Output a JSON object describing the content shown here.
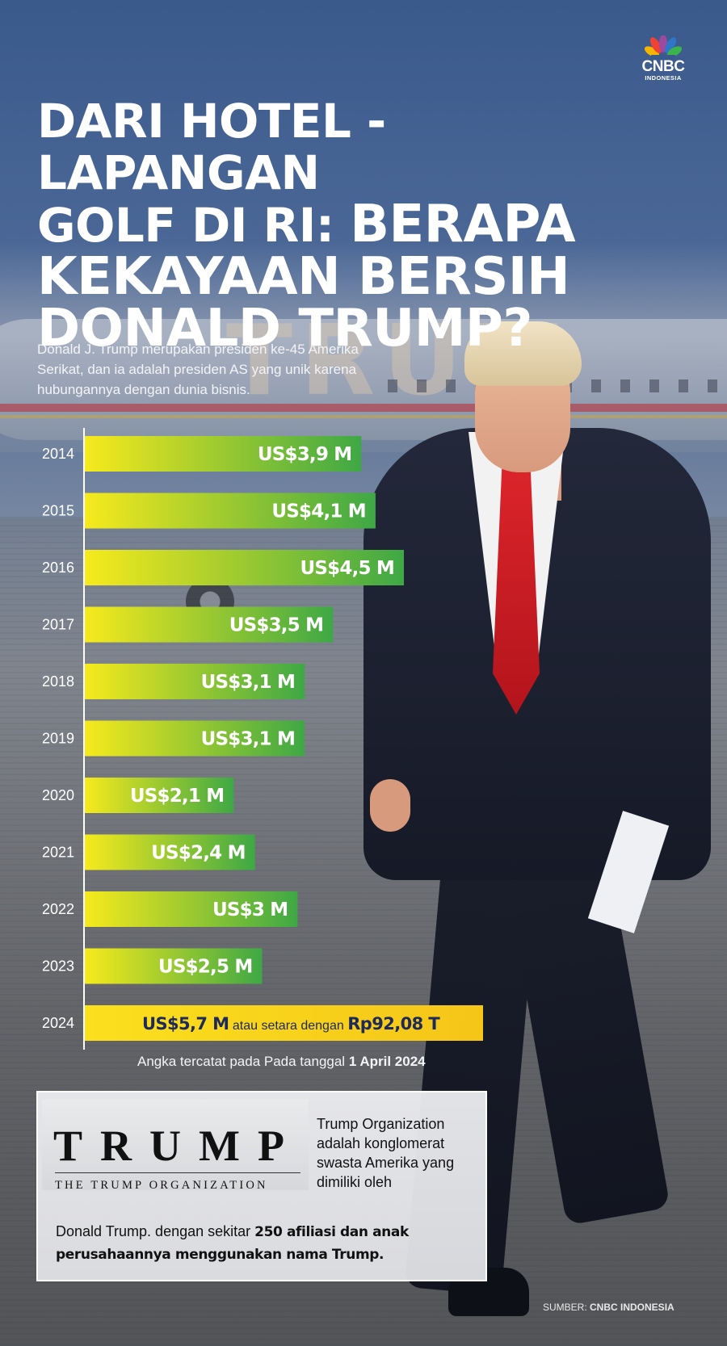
{
  "brand": {
    "name": "CNBC",
    "sub": "INDONESIA"
  },
  "title": {
    "line1": "DARI HOTEL - LAPANGAN",
    "line2a": "GOLF DI RI: ",
    "line2b": "BERAPA",
    "line3": "KEKAYAAN BERSIH",
    "line4": "DONALD TRUMP?"
  },
  "intro": "Donald J. Trump merupakan presiden ke-45 Amerika Serikat, dan ia adalah presiden AS yang unik karena hubungannya dengan dunia bisnis.",
  "chart_data": {
    "type": "bar",
    "orientation": "horizontal",
    "title": "Kekayaan bersih Donald Trump",
    "categories": [
      "2014",
      "2015",
      "2016",
      "2017",
      "2018",
      "2019",
      "2020",
      "2021",
      "2022",
      "2023",
      "2024"
    ],
    "values": [
      3.9,
      4.1,
      4.5,
      3.5,
      3.1,
      3.1,
      2.1,
      2.4,
      3.0,
      2.5,
      5.7
    ],
    "unit": "US$ miliar (M)",
    "labels": [
      "US$3,9 M",
      "US$4,1 M",
      "US$4,5 M",
      "US$3,5 M",
      "US$3,1 M",
      "US$3,1 M",
      "US$2,1 M",
      "US$2,4 M",
      "US$3 M",
      "US$2,5 M",
      "US$5,7 M"
    ],
    "highlight_index": 10,
    "highlight_extra": {
      "text": "atau setara dengan",
      "value": "Rp92,08 T"
    },
    "xlim": [
      0,
      5.7
    ],
    "colors": {
      "gradient_start": "#f7ea1c",
      "gradient_end": "#3ea845",
      "highlight": "#f5c518"
    }
  },
  "note": {
    "prefix": "Angka tercatat pada Pada tanggal ",
    "date": "1 April 2024"
  },
  "trump_org": {
    "logo_word": "TRUMP",
    "logo_sub": "THE TRUMP ORGANIZATION",
    "text_side": "Trump Organization adalah konglomerat swasta Amerika yang dimiliki oleh",
    "text_bottom_a": "Donald Trump. dengan sekitar ",
    "text_bottom_b": "250 afiliasi dan anak perusahaannya menggunakan nama Trump."
  },
  "source": {
    "label": "SUMBER: ",
    "value": "CNBC INDONESIA"
  }
}
